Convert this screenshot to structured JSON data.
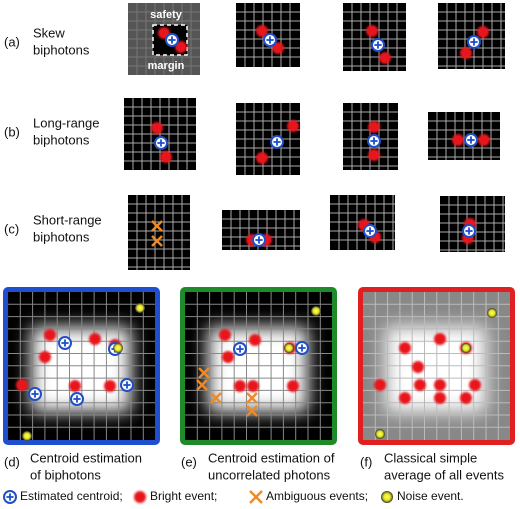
{
  "rows": [
    {
      "label": "(a)",
      "lines": [
        "Skew",
        "biphotons"
      ]
    },
    {
      "label": "(b)",
      "lines": [
        "Long-range",
        "biphotons"
      ]
    },
    {
      "label": "(c)",
      "lines": [
        "Short-range",
        "biphotons"
      ]
    }
  ],
  "margin_labels": [
    "safety",
    "margin"
  ],
  "panels": [
    {
      "label": "(d)",
      "lines": [
        "Centroid estimation",
        "of biphotons"
      ]
    },
    {
      "label": "(e)",
      "lines": [
        "Centroid estimation of",
        "uncorrelated photons"
      ]
    },
    {
      "label": "(f)",
      "lines": [
        "Classical simple",
        "average of all events"
      ]
    }
  ],
  "legend": [
    "Estimated centroid;",
    "Bright event;",
    "Ambiguous events;",
    "Noise event."
  ]
}
